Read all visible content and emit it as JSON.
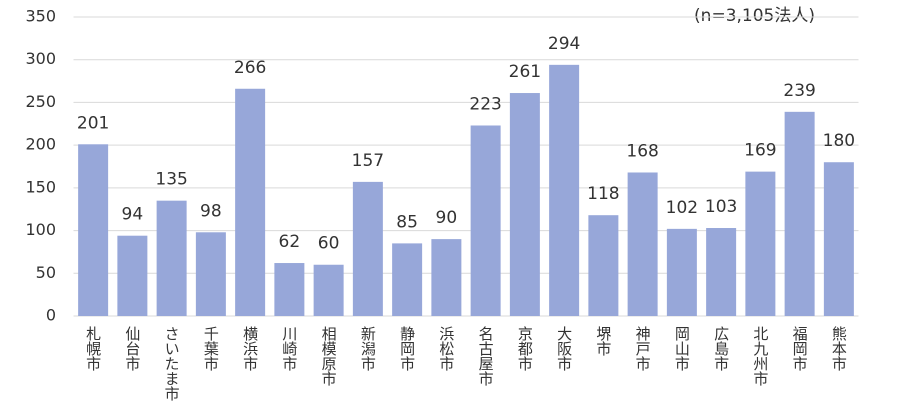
{
  "chart_data": {
    "type": "bar",
    "annotation": "(n=3,105法人)",
    "categories": [
      "札幌市",
      "仙台市",
      "さいたま市",
      "千葉市",
      "横浜市",
      "川崎市",
      "相模原市",
      "新潟市",
      "静岡市",
      "浜松市",
      "名古屋市",
      "京都市",
      "大阪市",
      "堺市",
      "神戸市",
      "岡山市",
      "広島市",
      "北九州市",
      "福岡市",
      "熊本市"
    ],
    "values": [
      201,
      94,
      135,
      98,
      266,
      62,
      60,
      157,
      85,
      90,
      223,
      261,
      294,
      118,
      168,
      102,
      103,
      169,
      239,
      180
    ],
    "color": "#97a7d9",
    "ylim": [
      0,
      350
    ],
    "yticks": [
      0,
      50,
      100,
      150,
      200,
      250,
      300,
      350
    ],
    "grid": true
  }
}
